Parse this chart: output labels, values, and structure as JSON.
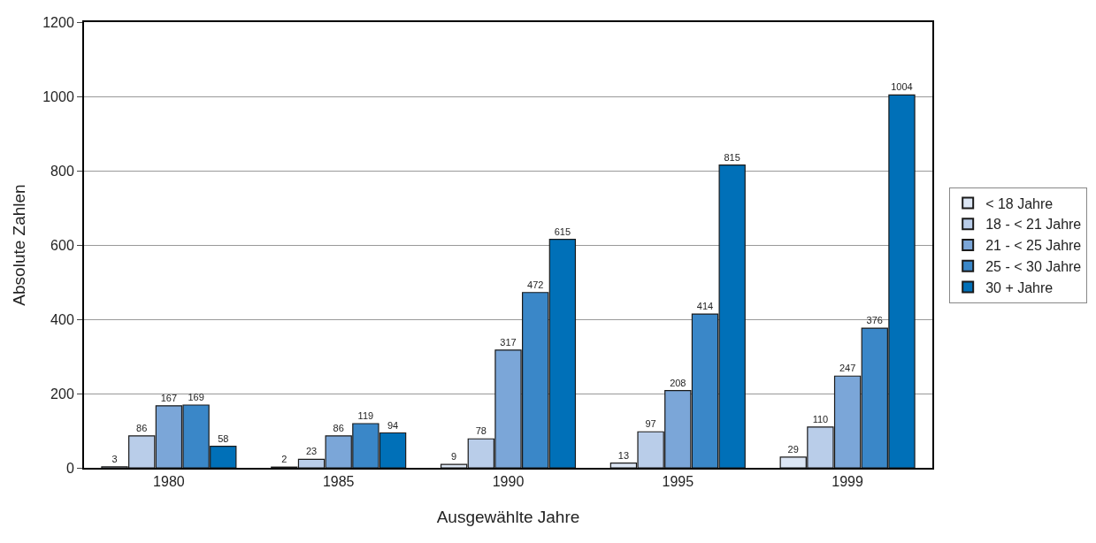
{
  "chart_data": {
    "type": "bar",
    "xlabel": "Ausgewählte Jahre",
    "ylabel": "Absolute Zahlen",
    "categories": [
      "1980",
      "1985",
      "1990",
      "1995",
      "1999"
    ],
    "series": [
      {
        "name": "< 18 Jahre",
        "color": "#dce6f4",
        "values": [
          3,
          2,
          9,
          13,
          29
        ]
      },
      {
        "name": "18 - < 21 Jahre",
        "color": "#b9cde9",
        "values": [
          86,
          23,
          78,
          97,
          110
        ]
      },
      {
        "name": "21 - < 25 Jahre",
        "color": "#7ba6d8",
        "values": [
          167,
          86,
          317,
          208,
          247
        ]
      },
      {
        "name": "25 - < 30 Jahre",
        "color": "#3a87c8",
        "values": [
          169,
          119,
          472,
          414,
          376
        ]
      },
      {
        "name": "30 + Jahre",
        "color": "#0070b8",
        "values": [
          58,
          94,
          615,
          815,
          1004
        ]
      }
    ],
    "ylim": [
      0,
      1200
    ],
    "yticks": [
      0,
      200,
      400,
      600,
      800,
      1000,
      1200
    ],
    "grid": "y",
    "legend": "right",
    "data_labels": true
  }
}
